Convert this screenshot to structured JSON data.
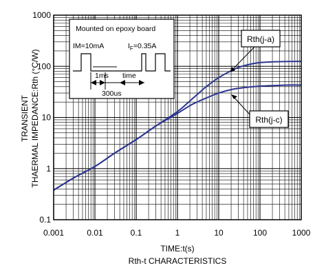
{
  "chart_data": {
    "type": "line",
    "title": "Rth-t CHARACTERISTICS",
    "xlabel": "TIME:t(s)",
    "ylabel_line1": "TRANSIENT",
    "ylabel_line2": "THAERMAL IMPEDANCE:Rth (°C/W)",
    "x_scale": "log",
    "y_scale": "log",
    "xlim": [
      0.001,
      1000
    ],
    "ylim": [
      0.1,
      1000
    ],
    "x_ticks": [
      "0.001",
      "0.01",
      "0.1",
      "1",
      "10",
      "100",
      "1000"
    ],
    "y_ticks": [
      "0.1",
      "1",
      "10",
      "100",
      "1000"
    ],
    "grid": true,
    "series": [
      {
        "name": "Rth(j-a)",
        "x": [
          0.001,
          0.003,
          0.01,
          0.03,
          0.1,
          0.3,
          1,
          2,
          3,
          5,
          10,
          20,
          30,
          50,
          100,
          200,
          500,
          1000
        ],
        "y": [
          0.38,
          0.65,
          1.1,
          2.0,
          3.7,
          6.8,
          13,
          21,
          28,
          40,
          60,
          82,
          95,
          107,
          118,
          122,
          124,
          125
        ]
      },
      {
        "name": "Rth(j-c)",
        "x": [
          0.001,
          0.003,
          0.01,
          0.03,
          0.1,
          0.3,
          1,
          2,
          3,
          5,
          10,
          20,
          30,
          50,
          100,
          200,
          500,
          1000
        ],
        "y": [
          0.38,
          0.65,
          1.1,
          2.0,
          3.7,
          6.8,
          12,
          17,
          20,
          24,
          30,
          35,
          37,
          39,
          41,
          42,
          43,
          43
        ]
      }
    ],
    "inset": {
      "title": "Mounted on epoxy board",
      "im_label": "IM=10mA",
      "if_label_prefix": "I",
      "if_label_sub": "F",
      "if_label_suffix": "=0.35A",
      "pulse_1ms": "1ms",
      "pulse_time": "time",
      "pulse_300us": "300us"
    },
    "color": "#2b3590"
  }
}
